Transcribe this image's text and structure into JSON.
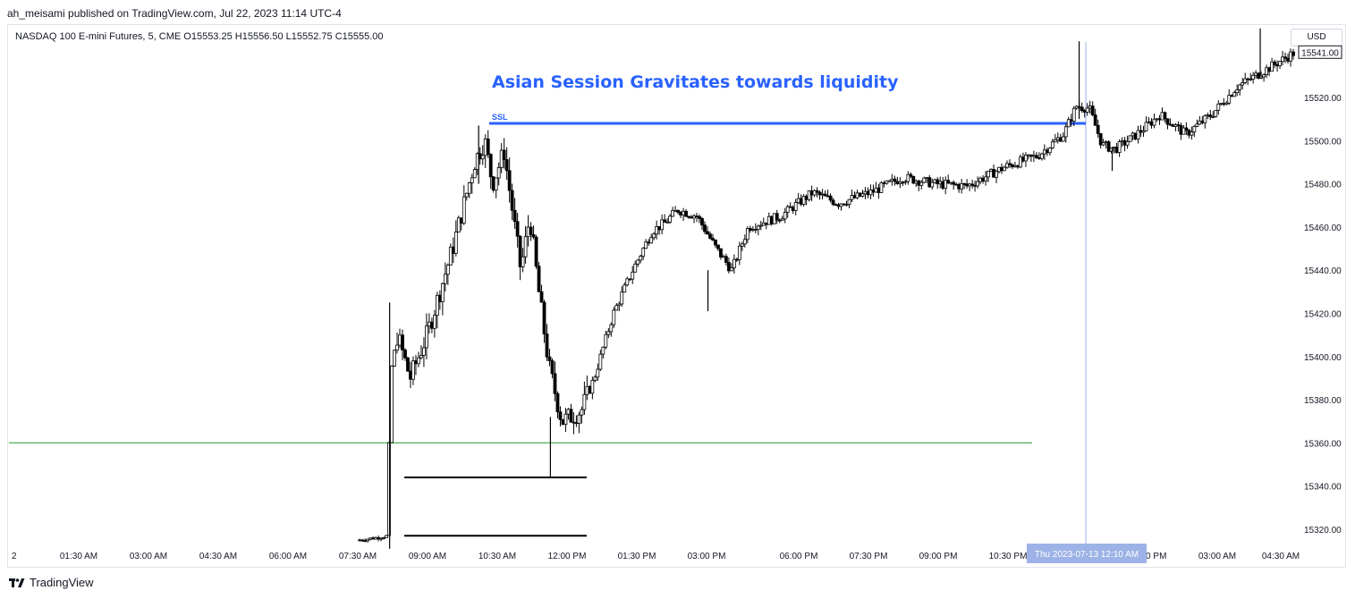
{
  "header": {
    "publisher": "ah_meisami published on TradingView.com, Jul 22, 2023 11:14 UTC-4",
    "symbol_info": "NASDAQ 100 E-mini Futures, 5, CME  O15553.25  H15556.50  L15552.75  C15555.00",
    "currency": "USD"
  },
  "footer": {
    "brand": "TradingView",
    "logo_icon": "tradingview-logo-icon"
  },
  "colors": {
    "up_candle": "#ffffff",
    "down_candle": "#000000",
    "candle_outline": "#000000",
    "annotation_blue": "#2962ff",
    "support_green": "#4caf50",
    "marker_black": "#000000",
    "crosshair": "#9db2e6",
    "time_badge": "#9db2e6"
  },
  "chart_data": {
    "type": "candlestick",
    "symbol": "NASDAQ 100 E-mini Futures",
    "timeframe": "5",
    "exchange": "CME",
    "ohlc": {
      "open": 15553.25,
      "high": 15556.5,
      "low": 15552.75,
      "close": 15555.0
    },
    "annotation": "Asian Session Gravitates towards liquidity",
    "level_label": "SSL",
    "last_price": "15541.00",
    "y_ticks": [
      "15320.00",
      "15340.00",
      "15360.00",
      "15380.00",
      "15400.00",
      "15420.00",
      "15440.00",
      "15460.00",
      "15480.00",
      "15500.00",
      "15520.00"
    ],
    "x_ticks": [
      "2",
      "01:30 AM",
      "03:00 AM",
      "04:30 AM",
      "06:00 AM",
      "07:30 AM",
      "09:00 AM",
      "10:30 AM",
      "12:00 PM",
      "01:30 PM",
      "03:00 PM",
      "06:00 PM",
      "07:30 PM",
      "09:00 PM",
      "10:30 PM",
      "01:30 PM",
      "03:00 AM",
      "04:30 AM"
    ],
    "crosshair_label": "Thu 2023-07-13   12:10 AM",
    "ylim": [
      15312,
      15550
    ],
    "levels": [
      {
        "name": "ssl-level",
        "price": 15508,
        "start": 0.3652,
        "end": 1.0
      },
      {
        "name": "support-level",
        "price": 15360,
        "start": 0.0,
        "end": 0.9569
      },
      {
        "name": "low-marker-upper",
        "price": 15344,
        "start": 0.2949,
        "end": 0.4356
      },
      {
        "name": "low-marker-lower",
        "price": 15317,
        "start": 0.2949,
        "end": 0.4356
      }
    ],
    "series": [
      {
        "name": "price-path",
        "points": [
          [
            0.0,
            15313
          ],
          [
            0.262,
            15313
          ],
          [
            0.272,
            15315
          ],
          [
            0.285,
            15316
          ],
          [
            0.295,
            15317
          ],
          [
            0.296,
            15390
          ],
          [
            0.302,
            15410
          ],
          [
            0.312,
            15390
          ],
          [
            0.325,
            15410
          ],
          [
            0.345,
            15450
          ],
          [
            0.362,
            15490
          ],
          [
            0.37,
            15500
          ],
          [
            0.376,
            15480
          ],
          [
            0.385,
            15495
          ],
          [
            0.398,
            15440
          ],
          [
            0.405,
            15465
          ],
          [
            0.412,
            15430
          ],
          [
            0.42,
            15395
          ],
          [
            0.43,
            15370
          ],
          [
            0.445,
            15375
          ],
          [
            0.455,
            15390
          ],
          [
            0.47,
            15420
          ],
          [
            0.485,
            15440
          ],
          [
            0.5,
            15458
          ],
          [
            0.51,
            15462
          ],
          [
            0.52,
            15468
          ],
          [
            0.535,
            15465
          ],
          [
            0.55,
            15450
          ],
          [
            0.562,
            15440
          ],
          [
            0.575,
            15460
          ],
          [
            0.6,
            15465
          ],
          [
            0.625,
            15476
          ],
          [
            0.645,
            15471
          ],
          [
            0.67,
            15476
          ],
          [
            0.695,
            15483
          ],
          [
            0.72,
            15480
          ],
          [
            0.745,
            15479
          ],
          [
            0.775,
            15488
          ],
          [
            0.8,
            15493
          ],
          [
            0.82,
            15503
          ],
          [
            0.83,
            15516
          ],
          [
            0.84,
            15515
          ],
          [
            0.85,
            15498
          ],
          [
            0.86,
            15496
          ],
          [
            0.875,
            15502
          ],
          [
            0.895,
            15512
          ],
          [
            0.915,
            15503
          ],
          [
            0.935,
            15512
          ],
          [
            0.955,
            15525
          ],
          [
            0.975,
            15532
          ],
          [
            1.0,
            15541
          ]
        ]
      }
    ],
    "extremes": [
      {
        "x": 0.296,
        "high": 15425,
        "low": 15311
      },
      {
        "x": 0.3652,
        "high": 15507,
        "low": 15480
      },
      {
        "x": 0.421,
        "high": 15372,
        "low": 15344
      },
      {
        "x": 0.5435,
        "high": 15440,
        "low": 15421
      },
      {
        "x": 0.8321,
        "high": 15546,
        "low": 15510
      },
      {
        "x": 0.8578,
        "high": 15497,
        "low": 15486
      },
      {
        "x": 0.9729,
        "high": 15552,
        "low": 15530
      }
    ]
  }
}
